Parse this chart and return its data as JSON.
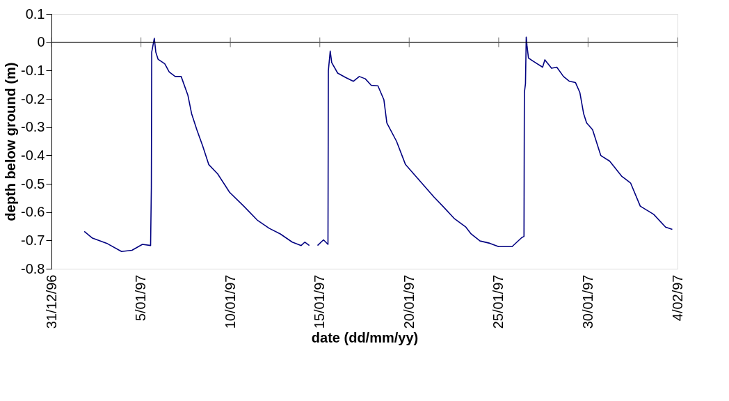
{
  "chart_data": {
    "type": "line",
    "xlabel": "date (dd/mm/yy)",
    "ylabel": "depth below ground (m)",
    "x": [
      "1997-01-01T20:00",
      "1997-01-02T07:00",
      "1997-01-03T02:00",
      "1997-01-03T22:00",
      "1997-01-04T12:00",
      "1997-01-05T02:00",
      "1997-01-05T13:00",
      "1997-01-05T14:00",
      "1997-01-05T14:30",
      "1997-01-05T18:00",
      "1997-01-05T20:00",
      "1997-01-05T23:00",
      "1997-01-06T08:00",
      "1997-01-06T14:00",
      "1997-01-06T22:00",
      "1997-01-07T06:00",
      "1997-01-07T15:00",
      "1997-01-07T20:00",
      "1997-01-08T03:00",
      "1997-01-08T11:00",
      "1997-01-08T19:00",
      "1997-01-09T07:00",
      "1997-01-09T23:00",
      "1997-01-10T18:00",
      "1997-01-11T12:00",
      "1997-01-12T04:00",
      "1997-01-12T19:00",
      "1997-01-13T11:00",
      "1997-01-13T23:00",
      "1997-01-14T04:00",
      "1997-01-14T10:00",
      "1997-01-14T16:00",
      "1997-01-14T21:00",
      "1997-01-15T05:00",
      "1997-01-15T11:00",
      "1997-01-15T11:30",
      "1997-01-15T14:00",
      "1997-01-15T16:00",
      "1997-01-16T00:00",
      "1997-01-16T11:00",
      "1997-01-16T21:00",
      "1997-01-17T05:00",
      "1997-01-17T13:00",
      "1997-01-17T21:00",
      "1997-01-18T06:00",
      "1997-01-18T14:00",
      "1997-01-18T18:00",
      "1997-01-19T07:00",
      "1997-01-19T19:00",
      "1997-01-20T14:00",
      "1997-01-21T09:00",
      "1997-01-21T21:00",
      "1997-01-22T13:00",
      "1997-01-23T04:00",
      "1997-01-23T11:00",
      "1997-01-23T23:00",
      "1997-01-24T12:00",
      "1997-01-25T00:00",
      "1997-01-25T18:00",
      "1997-01-26T07:00",
      "1997-01-26T10:00",
      "1997-01-26T10:30",
      "1997-01-26T12:00",
      "1997-01-26T13:00",
      "1997-01-26T14:00",
      "1997-01-26T16:00",
      "1997-01-26T23:00",
      "1997-01-27T11:00",
      "1997-01-27T14:00",
      "1997-01-27T23:00",
      "1997-01-28T06:00",
      "1997-01-28T15:00",
      "1997-01-28T23:00",
      "1997-01-29T07:00",
      "1997-01-29T13:00",
      "1997-01-29T18:00",
      "1997-01-29T22:00",
      "1997-01-30T06:00",
      "1997-01-30T17:00",
      "1997-01-31T05:00",
      "1997-01-31T21:00",
      "1997-02-01T09:00",
      "1997-02-01T22:00",
      "1997-02-02T16:00",
      "1997-02-03T08:00",
      "1997-02-03T17:00"
    ],
    "series": [
      {
        "color": "#000080",
        "values": [
          -0.668,
          -0.692,
          -0.71,
          -0.739,
          -0.735,
          -0.714,
          -0.718,
          -0.514,
          -0.035,
          0.014,
          -0.035,
          -0.06,
          -0.076,
          -0.105,
          -0.121,
          -0.121,
          -0.187,
          -0.252,
          -0.309,
          -0.367,
          -0.432,
          -0.465,
          -0.53,
          -0.579,
          -0.628,
          -0.657,
          -0.677,
          -0.706,
          -0.718,
          -0.706,
          -0.718,
          null,
          -0.718,
          -0.698,
          -0.714,
          -0.101,
          -0.031,
          -0.072,
          -0.109,
          -0.125,
          -0.138,
          -0.121,
          -0.129,
          -0.152,
          -0.154,
          -0.203,
          -0.285,
          -0.35,
          -0.432,
          -0.489,
          -0.546,
          -0.579,
          -0.624,
          -0.653,
          -0.677,
          -0.702,
          -0.71,
          -0.722,
          -0.722,
          -0.69,
          -0.686,
          -0.178,
          -0.146,
          0.018,
          -0.011,
          -0.056,
          -0.068,
          -0.088,
          -0.062,
          -0.092,
          -0.088,
          -0.121,
          -0.138,
          -0.142,
          -0.178,
          -0.252,
          -0.285,
          -0.309,
          -0.4,
          -0.42,
          -0.473,
          -0.497,
          -0.579,
          -0.608,
          -0.653,
          -0.661
        ]
      }
    ],
    "xlim": [
      "1996-12-31",
      "1997-02-04"
    ],
    "xticks": [
      {
        "value": "1996-12-31",
        "label": "31/12/96"
      },
      {
        "value": "1997-01-05",
        "label": "5/01/97"
      },
      {
        "value": "1997-01-10",
        "label": "10/01/97"
      },
      {
        "value": "1997-01-15",
        "label": "15/01/97"
      },
      {
        "value": "1997-01-20",
        "label": "20/01/97"
      },
      {
        "value": "1997-01-25",
        "label": "25/01/97"
      },
      {
        "value": "1997-01-30",
        "label": "30/01/97"
      },
      {
        "value": "1997-02-04",
        "label": "4/02/97"
      }
    ],
    "ylim": [
      -0.8,
      0.1
    ],
    "yticks": [
      0.1,
      0,
      -0.1,
      -0.2,
      -0.3,
      -0.4,
      -0.5,
      -0.6,
      -0.7,
      -0.8
    ],
    "ref_lines": [
      {
        "axis": "y",
        "value": 0,
        "color": "#000000"
      }
    ],
    "grid": false,
    "marker": "none",
    "line_style": "solid"
  }
}
